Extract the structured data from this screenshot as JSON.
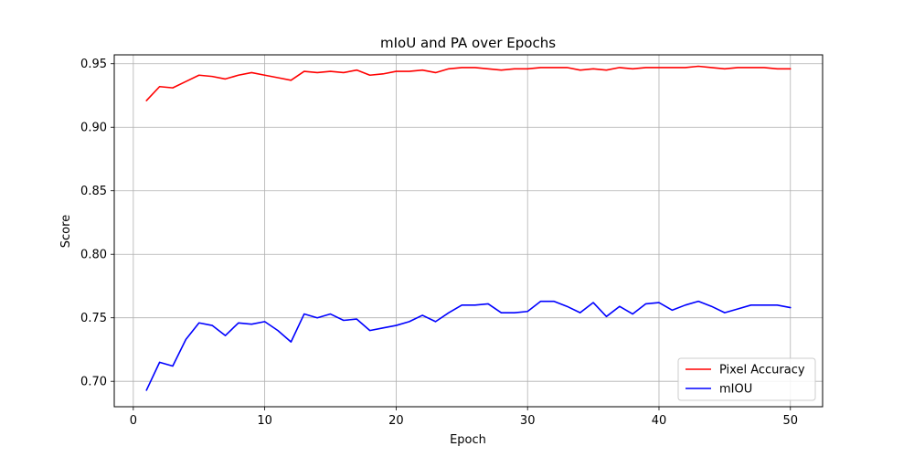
{
  "chart_data": {
    "type": "line",
    "title": "mIoU and PA over Epochs",
    "xlabel": "Epoch",
    "ylabel": "Score",
    "xlim": [
      -1.45,
      52.45
    ],
    "ylim": [
      0.68,
      0.957
    ],
    "xticks": [
      0,
      10,
      20,
      30,
      40,
      50
    ],
    "yticks": [
      0.7,
      0.75,
      0.8,
      0.85,
      0.9,
      0.95
    ],
    "grid": true,
    "legend_position": "lower-right",
    "x": [
      1,
      2,
      3,
      4,
      5,
      6,
      7,
      8,
      9,
      10,
      11,
      12,
      13,
      14,
      15,
      16,
      17,
      18,
      19,
      20,
      21,
      22,
      23,
      24,
      25,
      26,
      27,
      28,
      29,
      30,
      31,
      32,
      33,
      34,
      35,
      36,
      37,
      38,
      39,
      40,
      41,
      42,
      43,
      44,
      45,
      46,
      47,
      48,
      49,
      50
    ],
    "series": [
      {
        "name": "Pixel Accuracy",
        "color": "#ff0000",
        "values": [
          0.921,
          0.932,
          0.931,
          0.936,
          0.941,
          0.94,
          0.938,
          0.941,
          0.943,
          0.941,
          0.939,
          0.937,
          0.944,
          0.943,
          0.944,
          0.943,
          0.945,
          0.941,
          0.942,
          0.944,
          0.944,
          0.945,
          0.943,
          0.946,
          0.947,
          0.947,
          0.946,
          0.945,
          0.946,
          0.946,
          0.947,
          0.947,
          0.947,
          0.945,
          0.946,
          0.945,
          0.947,
          0.946,
          0.947,
          0.947,
          0.947,
          0.947,
          0.948,
          0.947,
          0.946,
          0.947,
          0.947,
          0.947,
          0.946,
          0.946
        ]
      },
      {
        "name": "mIOU",
        "color": "#0000ff",
        "values": [
          0.693,
          0.715,
          0.712,
          0.733,
          0.746,
          0.744,
          0.736,
          0.746,
          0.745,
          0.747,
          0.74,
          0.731,
          0.753,
          0.75,
          0.753,
          0.748,
          0.749,
          0.74,
          0.742,
          0.744,
          0.747,
          0.752,
          0.747,
          0.754,
          0.76,
          0.76,
          0.761,
          0.754,
          0.754,
          0.755,
          0.763,
          0.763,
          0.759,
          0.754,
          0.762,
          0.751,
          0.759,
          0.753,
          0.761,
          0.762,
          0.756,
          0.76,
          0.763,
          0.759,
          0.754,
          0.757,
          0.76,
          0.76,
          0.76,
          0.758
        ]
      }
    ]
  }
}
